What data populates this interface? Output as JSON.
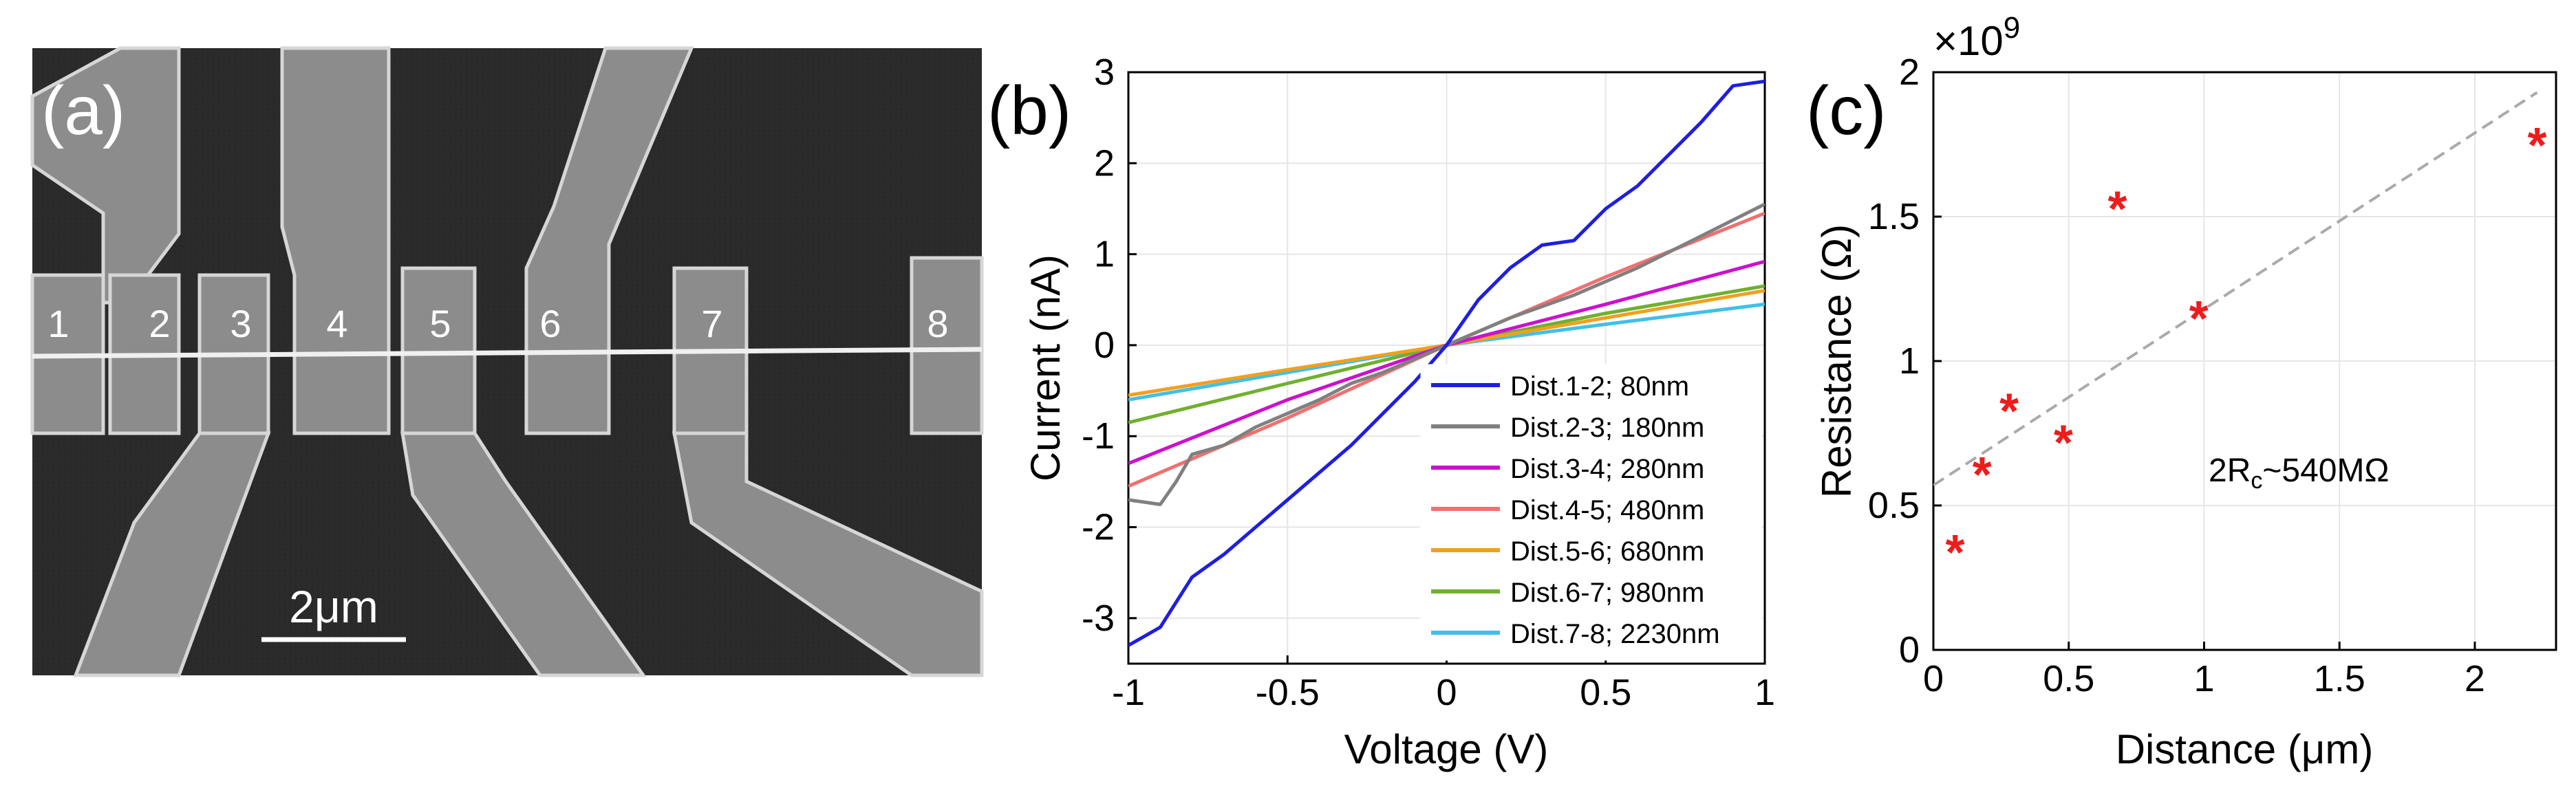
{
  "panels": {
    "a": {
      "label": "(a)",
      "electrode_labels": [
        "1",
        "2",
        "3",
        "4",
        "5",
        "6",
        "7",
        "8"
      ],
      "scale_bar_label": "2μm"
    },
    "b": {
      "label": "(b)"
    },
    "c": {
      "label": "(c)",
      "annotation": "2R",
      "annotation_sub": "c",
      "annotation_tail": "~540MΩ"
    }
  },
  "chart_data": [
    {
      "id": "b",
      "type": "line",
      "xlabel": "Voltage (V)",
      "ylabel": "Current (nA)",
      "xlim": [
        -1,
        1
      ],
      "ylim": [
        -3.5,
        3
      ],
      "xticks": [
        -1,
        -0.5,
        0,
        0.5,
        1
      ],
      "xtick_labels": [
        "-1",
        "-0.5",
        "0",
        "0.5",
        "1"
      ],
      "yticks": [
        3,
        2,
        1,
        0,
        -1,
        -2,
        -3
      ],
      "ytick_labels": [
        "3",
        "2",
        "1",
        "0",
        "-1",
        "-2",
        "-3"
      ],
      "grid": true,
      "legend_position": "bottom-right",
      "series": [
        {
          "name": "Dist.1-2; 80nm",
          "color": "#1f1fe0",
          "points": [
            [
              -1,
              -3.3
            ],
            [
              -0.9,
              -3.1
            ],
            [
              -0.8,
              -2.55
            ],
            [
              -0.7,
              -2.3
            ],
            [
              -0.6,
              -2.0
            ],
            [
              -0.5,
              -1.7
            ],
            [
              -0.4,
              -1.4
            ],
            [
              -0.3,
              -1.1
            ],
            [
              -0.2,
              -0.75
            ],
            [
              -0.1,
              -0.4
            ],
            [
              0,
              0
            ],
            [
              0.1,
              0.5
            ],
            [
              0.2,
              0.85
            ],
            [
              0.3,
              1.1
            ],
            [
              0.4,
              1.15
            ],
            [
              0.5,
              1.5
            ],
            [
              0.6,
              1.75
            ],
            [
              0.7,
              2.1
            ],
            [
              0.8,
              2.45
            ],
            [
              0.9,
              2.85
            ],
            [
              1,
              2.9
            ]
          ]
        },
        {
          "name": "Dist.2-3; 180nm",
          "color": "#808080",
          "points": [
            [
              -1,
              -1.7
            ],
            [
              -0.9,
              -1.75
            ],
            [
              -0.85,
              -1.5
            ],
            [
              -0.8,
              -1.2
            ],
            [
              -0.7,
              -1.1
            ],
            [
              -0.6,
              -0.9
            ],
            [
              -0.5,
              -0.75
            ],
            [
              -0.4,
              -0.6
            ],
            [
              -0.3,
              -0.42
            ],
            [
              -0.2,
              -0.3
            ],
            [
              -0.1,
              -0.15
            ],
            [
              0,
              0
            ],
            [
              0.2,
              0.3
            ],
            [
              0.4,
              0.55
            ],
            [
              0.6,
              0.85
            ],
            [
              0.8,
              1.2
            ],
            [
              1,
              1.55
            ]
          ]
        },
        {
          "name": "Dist.3-4; 280nm",
          "color": "#cc11cc",
          "points": [
            [
              -1,
              -1.3
            ],
            [
              -0.5,
              -0.6
            ],
            [
              0,
              0
            ],
            [
              0.5,
              0.45
            ],
            [
              1,
              0.92
            ]
          ]
        },
        {
          "name": "Dist.4-5; 480nm",
          "color": "#f07070",
          "points": [
            [
              -1,
              -1.55
            ],
            [
              -0.5,
              -0.8
            ],
            [
              0,
              0
            ],
            [
              0.5,
              0.75
            ],
            [
              1,
              1.45
            ]
          ]
        },
        {
          "name": "Dist.5-6; 680nm",
          "color": "#f0a020",
          "points": [
            [
              -1,
              -0.55
            ],
            [
              -0.5,
              -0.27
            ],
            [
              0,
              0
            ],
            [
              0.5,
              0.3
            ],
            [
              1,
              0.6
            ]
          ]
        },
        {
          "name": "Dist.6-7; 980nm",
          "color": "#70b030",
          "points": [
            [
              -1,
              -0.85
            ],
            [
              -0.5,
              -0.42
            ],
            [
              0,
              0
            ],
            [
              0.5,
              0.35
            ],
            [
              1,
              0.65
            ]
          ]
        },
        {
          "name": "Dist.7-8; 2230nm",
          "color": "#40c0e8",
          "points": [
            [
              -1,
              -0.6
            ],
            [
              -0.5,
              -0.3
            ],
            [
              0,
              0
            ],
            [
              0.5,
              0.23
            ],
            [
              1,
              0.45
            ]
          ]
        }
      ]
    },
    {
      "id": "c",
      "type": "scatter",
      "xlabel": "Distance (μm)",
      "ylabel": "Resistance (Ω)",
      "y_multiplier": "×10",
      "y_multiplier_exp": "9",
      "xlim": [
        0,
        2.3
      ],
      "ylim": [
        0,
        2000000000.0
      ],
      "xticks": [
        0,
        0.5,
        1,
        1.5,
        2
      ],
      "xtick_labels": [
        "0",
        "0.5",
        "1",
        "1.5",
        "2"
      ],
      "yticks": [
        0,
        500000000.0,
        1000000000.0,
        1500000000.0,
        2000000000.0
      ],
      "ytick_labels": [
        "0",
        "0.5",
        "1",
        "1.5",
        "2"
      ],
      "grid": true,
      "marker": "*",
      "marker_color": "#ee1c1c",
      "fit_color": "#aaaaaa",
      "points": [
        [
          0.08,
          340000000.0
        ],
        [
          0.18,
          610000000.0
        ],
        [
          0.28,
          830000000.0
        ],
        [
          0.48,
          720000000.0
        ],
        [
          0.68,
          1530000000.0
        ],
        [
          0.98,
          1150000000.0
        ],
        [
          2.23,
          1750000000.0
        ]
      ],
      "fit_line": [
        [
          0,
          570000000.0
        ],
        [
          2.23,
          1930000000.0
        ]
      ]
    }
  ]
}
